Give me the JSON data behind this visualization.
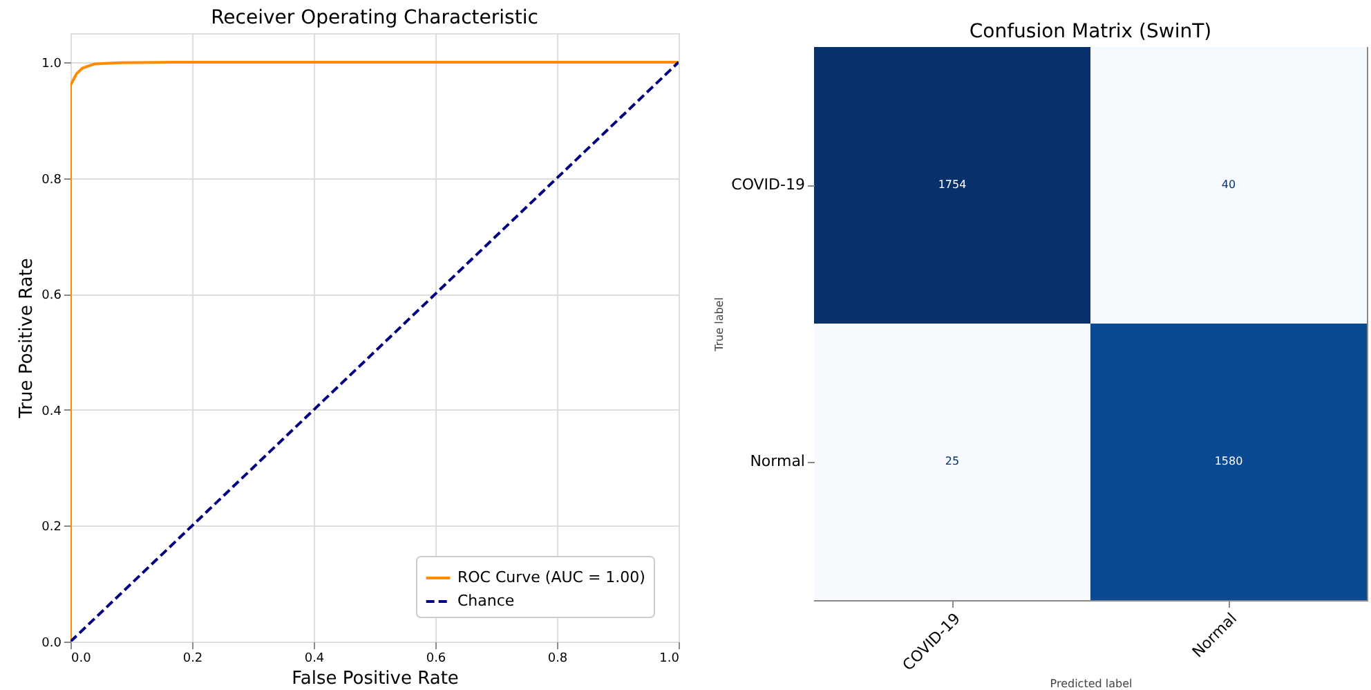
{
  "chart_data": [
    {
      "type": "line",
      "title": "Receiver Operating Characteristic",
      "xlabel": "False Positive Rate",
      "ylabel": "True Positive Rate",
      "series": [
        {
          "name": "ROC Curve (AUC = 1.00)",
          "color": "#ff8c00",
          "line_style": "solid",
          "x": [
            0,
            0,
            0,
            0.005,
            0.01,
            0.02,
            0.04,
            0.08,
            0.17,
            1.0
          ],
          "values": [
            0,
            0.8,
            0.96,
            0.97,
            0.98,
            0.99,
            0.997,
            0.999,
            1.0,
            1.0
          ]
        },
        {
          "name": "Chance",
          "color": "#000080",
          "line_style": "dashed",
          "x": [
            0,
            1
          ],
          "values": [
            0,
            1
          ]
        }
      ],
      "xlim": [
        0,
        1
      ],
      "ylim": [
        0,
        1.05
      ],
      "xticks": [
        {
          "value": 0,
          "label": "0.0"
        },
        0.2,
        0.4,
        0.6,
        0.8,
        {
          "value": 1,
          "label": "1.0"
        }
      ],
      "yticks": [
        {
          "value": 0,
          "label": "0.0"
        },
        0.2,
        0.4,
        0.6,
        0.8,
        {
          "value": 1,
          "label": "1.0"
        }
      ],
      "grid": true,
      "legend": "bottom right"
    },
    {
      "type": "heatmap",
      "title": "Confusion Matrix (SwinT)",
      "xlabel": "Predicted label",
      "ylabel": "True label",
      "categories": [
        "COVID-19",
        "Normal"
      ],
      "y_categories": [
        "COVID-19",
        "Normal"
      ],
      "cells": [
        [
          1754,
          40
        ],
        [
          25,
          1580
        ]
      ],
      "data_labels": true
    }
  ]
}
